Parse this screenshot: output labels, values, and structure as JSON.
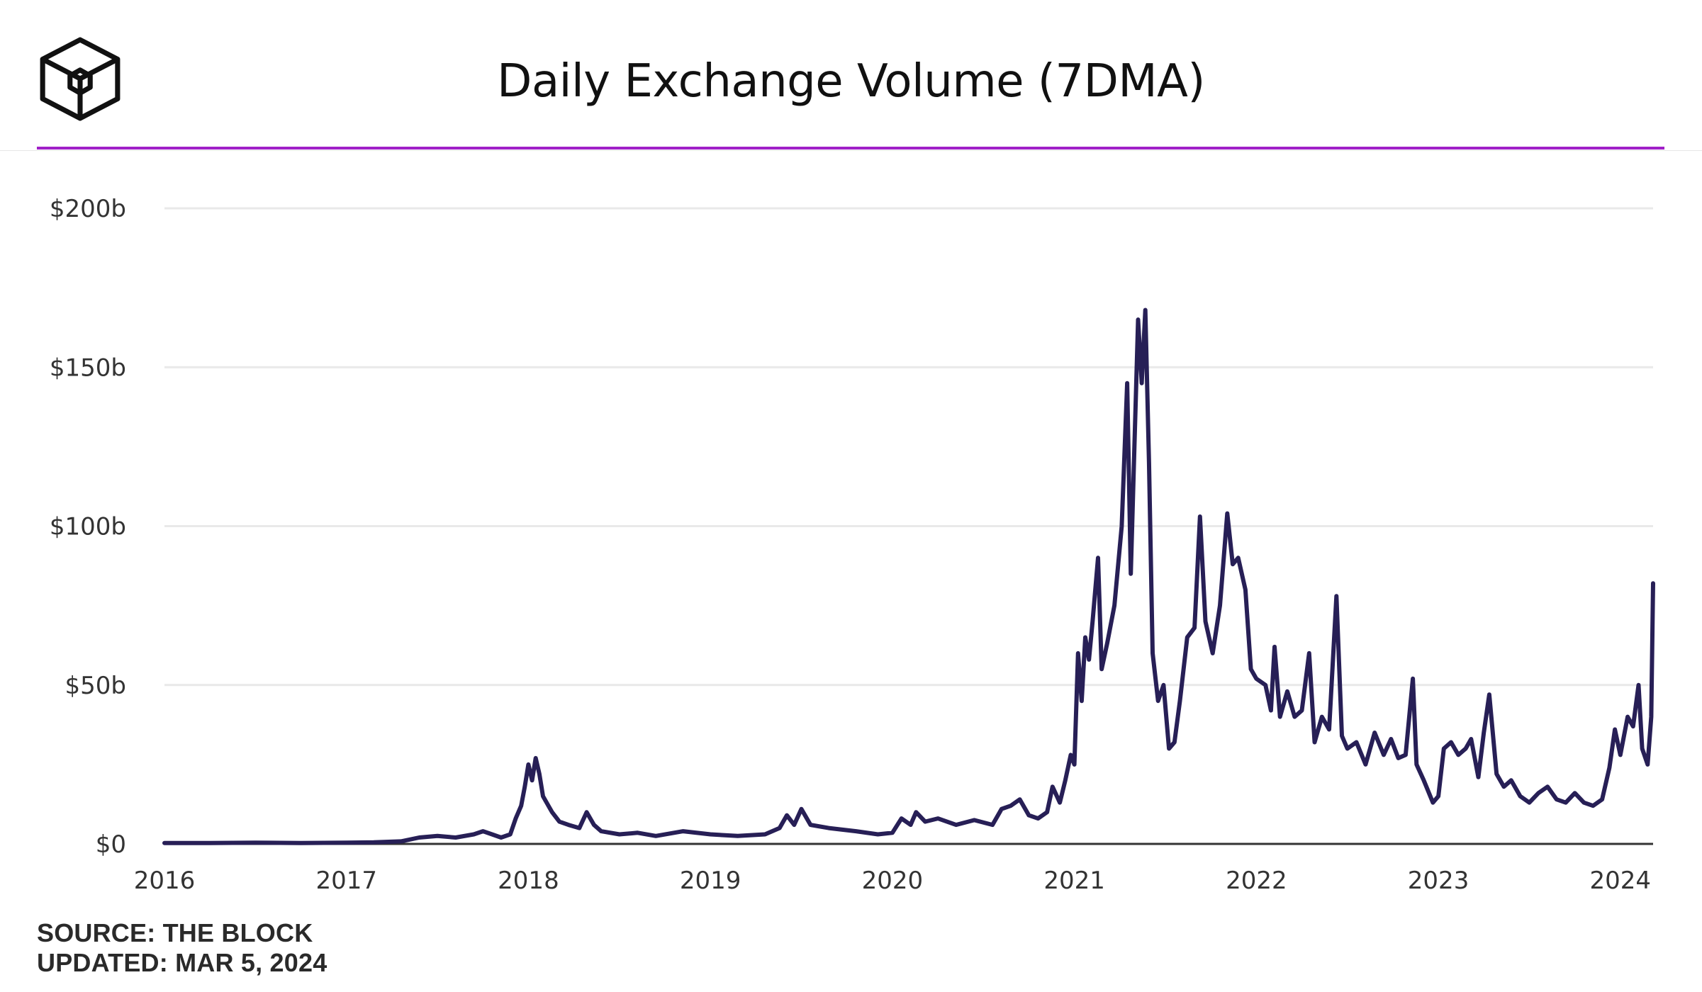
{
  "title": "Daily Exchange Volume (7DMA)",
  "colors": {
    "accent_rule": "#a020c8",
    "line": "#271f56",
    "grid": "#e9e9e9",
    "axis": "#333333"
  },
  "logo": {
    "icon": "the-block-cube-logo-icon"
  },
  "footer": {
    "source": "SOURCE: THE BLOCK",
    "updated": "UPDATED: MAR 5, 2024"
  },
  "chart_data": {
    "type": "line",
    "title": "Daily Exchange Volume (7DMA)",
    "xlabel": "",
    "ylabel": "",
    "unit": "USD billions",
    "xlim": [
      2016.0,
      2024.18
    ],
    "ylim": [
      0,
      200
    ],
    "grid": true,
    "y_ticks": [
      0,
      50,
      100,
      150,
      200
    ],
    "y_tick_labels": [
      "$0",
      "$50b",
      "$100b",
      "$150b",
      "$200b"
    ],
    "x_ticks": [
      2016,
      2017,
      2018,
      2019,
      2020,
      2021,
      2022,
      2023,
      2024
    ],
    "x_tick_labels": [
      "2016",
      "2017",
      "2018",
      "2019",
      "2020",
      "2021",
      "2022",
      "2023",
      "2024"
    ],
    "series": [
      {
        "name": "Daily Exchange Volume (7DMA)",
        "points": [
          [
            2016.0,
            0.3
          ],
          [
            2016.25,
            0.3
          ],
          [
            2016.5,
            0.4
          ],
          [
            2016.75,
            0.3
          ],
          [
            2017.0,
            0.4
          ],
          [
            2017.15,
            0.5
          ],
          [
            2017.3,
            0.8
          ],
          [
            2017.4,
            2.0
          ],
          [
            2017.5,
            2.5
          ],
          [
            2017.6,
            2.0
          ],
          [
            2017.7,
            3.0
          ],
          [
            2017.75,
            4.0
          ],
          [
            2017.8,
            3.0
          ],
          [
            2017.85,
            2.0
          ],
          [
            2017.9,
            3.0
          ],
          [
            2017.93,
            8.0
          ],
          [
            2017.96,
            12.0
          ],
          [
            2017.98,
            18.0
          ],
          [
            2018.0,
            25.0
          ],
          [
            2018.02,
            20.0
          ],
          [
            2018.04,
            27.0
          ],
          [
            2018.06,
            22.0
          ],
          [
            2018.08,
            15.0
          ],
          [
            2018.1,
            13.0
          ],
          [
            2018.13,
            10.0
          ],
          [
            2018.17,
            7.0
          ],
          [
            2018.22,
            6.0
          ],
          [
            2018.28,
            5.0
          ],
          [
            2018.32,
            10.0
          ],
          [
            2018.36,
            6.0
          ],
          [
            2018.4,
            4.0
          ],
          [
            2018.5,
            3.0
          ],
          [
            2018.6,
            3.5
          ],
          [
            2018.7,
            2.5
          ],
          [
            2018.85,
            4.0
          ],
          [
            2019.0,
            3.0
          ],
          [
            2019.15,
            2.5
          ],
          [
            2019.3,
            3.0
          ],
          [
            2019.38,
            5.0
          ],
          [
            2019.42,
            9.0
          ],
          [
            2019.46,
            6.0
          ],
          [
            2019.5,
            11.0
          ],
          [
            2019.55,
            6.0
          ],
          [
            2019.65,
            5.0
          ],
          [
            2019.8,
            4.0
          ],
          [
            2019.92,
            3.0
          ],
          [
            2020.0,
            3.5
          ],
          [
            2020.05,
            8.0
          ],
          [
            2020.1,
            6.0
          ],
          [
            2020.13,
            10.0
          ],
          [
            2020.18,
            7.0
          ],
          [
            2020.25,
            8.0
          ],
          [
            2020.35,
            6.0
          ],
          [
            2020.45,
            7.5
          ],
          [
            2020.55,
            6.0
          ],
          [
            2020.6,
            11.0
          ],
          [
            2020.65,
            12.0
          ],
          [
            2020.7,
            14.0
          ],
          [
            2020.75,
            9.0
          ],
          [
            2020.8,
            8.0
          ],
          [
            2020.85,
            10.0
          ],
          [
            2020.88,
            18.0
          ],
          [
            2020.92,
            13.0
          ],
          [
            2020.95,
            20.0
          ],
          [
            2020.98,
            28.0
          ],
          [
            2021.0,
            25.0
          ],
          [
            2021.02,
            60.0
          ],
          [
            2021.04,
            45.0
          ],
          [
            2021.06,
            65.0
          ],
          [
            2021.08,
            58.0
          ],
          [
            2021.1,
            70.0
          ],
          [
            2021.13,
            90.0
          ],
          [
            2021.15,
            55.0
          ],
          [
            2021.18,
            63.0
          ],
          [
            2021.22,
            75.0
          ],
          [
            2021.26,
            100.0
          ],
          [
            2021.29,
            145.0
          ],
          [
            2021.31,
            85.0
          ],
          [
            2021.33,
            125.0
          ],
          [
            2021.35,
            165.0
          ],
          [
            2021.37,
            145.0
          ],
          [
            2021.39,
            168.0
          ],
          [
            2021.41,
            120.0
          ],
          [
            2021.43,
            60.0
          ],
          [
            2021.46,
            45.0
          ],
          [
            2021.49,
            50.0
          ],
          [
            2021.52,
            30.0
          ],
          [
            2021.55,
            32.0
          ],
          [
            2021.58,
            45.0
          ],
          [
            2021.62,
            65.0
          ],
          [
            2021.66,
            68.0
          ],
          [
            2021.69,
            103.0
          ],
          [
            2021.72,
            70.0
          ],
          [
            2021.76,
            60.0
          ],
          [
            2021.8,
            75.0
          ],
          [
            2021.84,
            104.0
          ],
          [
            2021.87,
            88.0
          ],
          [
            2021.9,
            90.0
          ],
          [
            2021.94,
            80.0
          ],
          [
            2021.97,
            55.0
          ],
          [
            2022.0,
            52.0
          ],
          [
            2022.05,
            50.0
          ],
          [
            2022.08,
            42.0
          ],
          [
            2022.1,
            62.0
          ],
          [
            2022.13,
            40.0
          ],
          [
            2022.17,
            48.0
          ],
          [
            2022.21,
            40.0
          ],
          [
            2022.25,
            42.0
          ],
          [
            2022.29,
            60.0
          ],
          [
            2022.32,
            32.0
          ],
          [
            2022.36,
            40.0
          ],
          [
            2022.4,
            36.0
          ],
          [
            2022.44,
            78.0
          ],
          [
            2022.47,
            34.0
          ],
          [
            2022.5,
            30.0
          ],
          [
            2022.55,
            32.0
          ],
          [
            2022.6,
            25.0
          ],
          [
            2022.65,
            35.0
          ],
          [
            2022.7,
            28.0
          ],
          [
            2022.74,
            33.0
          ],
          [
            2022.78,
            27.0
          ],
          [
            2022.82,
            28.0
          ],
          [
            2022.86,
            52.0
          ],
          [
            2022.88,
            25.0
          ],
          [
            2022.92,
            20.0
          ],
          [
            2022.97,
            13.0
          ],
          [
            2023.0,
            15.0
          ],
          [
            2023.03,
            30.0
          ],
          [
            2023.07,
            32.0
          ],
          [
            2023.11,
            28.0
          ],
          [
            2023.15,
            30.0
          ],
          [
            2023.18,
            33.0
          ],
          [
            2023.22,
            21.0
          ],
          [
            2023.25,
            35.0
          ],
          [
            2023.28,
            47.0
          ],
          [
            2023.32,
            22.0
          ],
          [
            2023.36,
            18.0
          ],
          [
            2023.4,
            20.0
          ],
          [
            2023.45,
            15.0
          ],
          [
            2023.5,
            13.0
          ],
          [
            2023.55,
            16.0
          ],
          [
            2023.6,
            18.0
          ],
          [
            2023.65,
            14.0
          ],
          [
            2023.7,
            13.0
          ],
          [
            2023.75,
            16.0
          ],
          [
            2023.8,
            13.0
          ],
          [
            2023.85,
            12.0
          ],
          [
            2023.9,
            14.0
          ],
          [
            2023.94,
            24.0
          ],
          [
            2023.97,
            36.0
          ],
          [
            2024.0,
            28.0
          ],
          [
            2024.04,
            40.0
          ],
          [
            2024.07,
            37.0
          ],
          [
            2024.1,
            50.0
          ],
          [
            2024.12,
            30.0
          ],
          [
            2024.15,
            25.0
          ],
          [
            2024.17,
            40.0
          ],
          [
            2024.18,
            82.0
          ]
        ]
      }
    ]
  }
}
